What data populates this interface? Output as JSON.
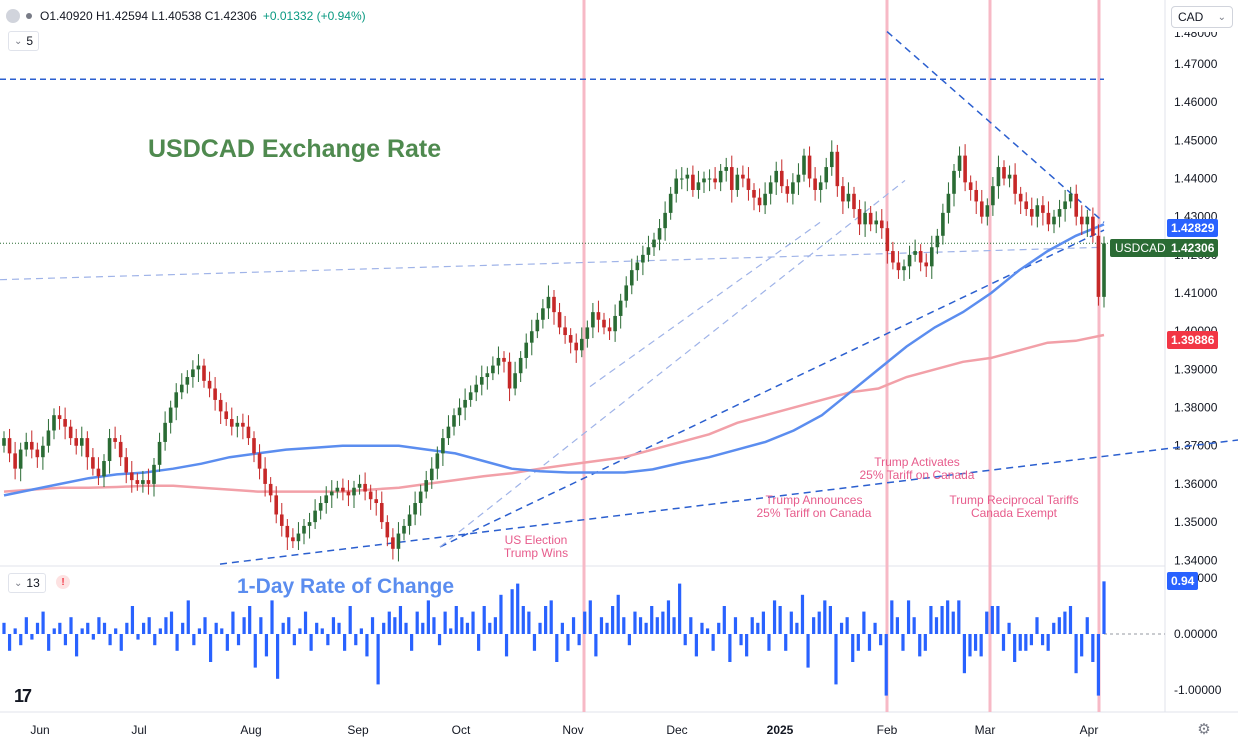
{
  "header": {
    "ohlc_text": "O1.40920 H1.42594 L1.40538 C1.42306",
    "change_text": "+0.01332 (+0.94%)",
    "main_legend_value": "5",
    "sub_legend_value": "13",
    "currency": "CAD"
  },
  "colors": {
    "up": "#2a6b34",
    "down": "#c62828",
    "ma_short": "#5b8def",
    "ma_long": "#f2a0a8",
    "event_line": "#f7b9c6",
    "trendline": "#2b5fcf",
    "roc_bar": "#2962ff",
    "annotation": "#e75c8c"
  },
  "chart_data": {
    "type": "candlestick",
    "title": "USDCAD Exchange Rate",
    "symbol": "USDCAD",
    "x_ticks": [
      "Jun",
      "Jul",
      "Aug",
      "Sep",
      "Oct",
      "Nov",
      "Dec",
      "2025",
      "Feb",
      "Mar",
      "Apr"
    ],
    "y_ticks": [
      "1.47000",
      "1.46000",
      "1.45000",
      "1.44000",
      "1.43000",
      "1.42000",
      "1.41000",
      "1.40000",
      "1.39000",
      "1.38000",
      "1.37000",
      "1.36000",
      "1.35000",
      "1.34000"
    ],
    "ylim": [
      1.3385,
      1.481
    ],
    "last_close": 1.42306,
    "price_labels": {
      "symbol_price": "1.42306",
      "ma_short": "1.42829",
      "ma_long": "1.39886",
      "roc_current": "0.94"
    },
    "price_series": [
      1.372,
      1.368,
      1.364,
      1.369,
      1.371,
      1.369,
      1.367,
      1.37,
      1.374,
      1.378,
      1.377,
      1.375,
      1.372,
      1.37,
      1.372,
      1.367,
      1.364,
      1.362,
      1.366,
      1.372,
      1.371,
      1.367,
      1.363,
      1.361,
      1.36,
      1.361,
      1.36,
      1.365,
      1.371,
      1.376,
      1.38,
      1.384,
      1.386,
      1.388,
      1.39,
      1.391,
      1.387,
      1.385,
      1.382,
      1.379,
      1.377,
      1.375,
      1.376,
      1.375,
      1.372,
      1.368,
      1.364,
      1.36,
      1.357,
      1.352,
      1.349,
      1.346,
      1.345,
      1.347,
      1.349,
      1.35,
      1.353,
      1.355,
      1.357,
      1.358,
      1.359,
      1.358,
      1.357,
      1.359,
      1.36,
      1.358,
      1.356,
      1.355,
      1.35,
      1.346,
      1.343,
      1.347,
      1.349,
      1.352,
      1.355,
      1.358,
      1.361,
      1.364,
      1.368,
      1.372,
      1.375,
      1.378,
      1.38,
      1.382,
      1.384,
      1.386,
      1.388,
      1.389,
      1.391,
      1.393,
      1.392,
      1.385,
      1.389,
      1.393,
      1.397,
      1.4,
      1.403,
      1.406,
      1.409,
      1.405,
      1.401,
      1.399,
      1.397,
      1.395,
      1.398,
      1.401,
      1.405,
      1.403,
      1.401,
      1.4,
      1.404,
      1.408,
      1.412,
      1.416,
      1.418,
      1.42,
      1.422,
      1.424,
      1.427,
      1.431,
      1.436,
      1.44,
      1.44,
      1.441,
      1.437,
      1.439,
      1.44,
      1.44,
      1.439,
      1.442,
      1.443,
      1.437,
      1.441,
      1.44,
      1.437,
      1.435,
      1.433,
      1.436,
      1.439,
      1.442,
      1.438,
      1.436,
      1.439,
      1.441,
      1.446,
      1.44,
      1.437,
      1.439,
      1.443,
      1.447,
      1.438,
      1.434,
      1.436,
      1.432,
      1.428,
      1.431,
      1.428,
      1.429,
      1.427,
      1.421,
      1.418,
      1.416,
      1.417,
      1.42,
      1.421,
      1.418,
      1.417,
      1.422,
      1.425,
      1.431,
      1.436,
      1.442,
      1.446,
      1.439,
      1.437,
      1.434,
      1.43,
      1.433,
      1.438,
      1.443,
      1.44,
      1.441,
      1.436,
      1.434,
      1.432,
      1.43,
      1.433,
      1.431,
      1.428,
      1.43,
      1.432,
      1.434,
      1.436,
      1.43,
      1.428,
      1.43,
      1.425,
      1.409,
      1.423
    ],
    "ma_short_series": [
      1.357,
      1.3585,
      1.36,
      1.3615,
      1.3625,
      1.363,
      1.364,
      1.3653,
      1.367,
      1.368,
      1.369,
      1.3695,
      1.37,
      1.37,
      1.37,
      1.369,
      1.368,
      1.366,
      1.364,
      1.3633,
      1.363,
      1.363,
      1.363,
      1.3638,
      1.3655,
      1.367,
      1.369,
      1.371,
      1.374,
      1.378,
      1.384,
      1.39,
      1.396,
      1.401,
      1.405,
      1.41,
      1.416,
      1.421,
      1.425,
      1.428
    ],
    "ma_long_series": [
      1.358,
      1.3585,
      1.359,
      1.359,
      1.3592,
      1.3595,
      1.3595,
      1.359,
      1.3585,
      1.358,
      1.358,
      1.358,
      1.358,
      1.3585,
      1.359,
      1.36,
      1.361,
      1.362,
      1.3628,
      1.364,
      1.365,
      1.366,
      1.367,
      1.369,
      1.371,
      1.373,
      1.376,
      1.378,
      1.38,
      1.382,
      1.384,
      1.385,
      1.388,
      1.39,
      1.392,
      1.393,
      1.395,
      1.397,
      1.3975,
      1.399
    ],
    "roc_series": [
      0.2,
      -0.3,
      0.1,
      -0.2,
      0.3,
      -0.1,
      0.2,
      0.4,
      -0.3,
      0.1,
      0.2,
      -0.2,
      0.3,
      -0.4,
      0.1,
      0.2,
      -0.1,
      0.3,
      0.2,
      -0.2,
      0.1,
      -0.3,
      0.2,
      0.5,
      -0.1,
      0.2,
      0.3,
      -0.2,
      0.1,
      0.3,
      0.4,
      -0.3,
      0.2,
      0.6,
      -0.2,
      0.1,
      0.3,
      -0.5,
      0.2,
      0.1,
      -0.3,
      0.4,
      -0.2,
      0.3,
      0.5,
      -0.6,
      0.3,
      -0.4,
      0.6,
      -0.8,
      0.2,
      0.3,
      -0.2,
      0.1,
      0.4,
      -0.3,
      0.2,
      0.1,
      -0.2,
      0.3,
      0.2,
      -0.3,
      0.5,
      -0.2,
      0.1,
      -0.4,
      0.3,
      -0.9,
      0.2,
      0.4,
      0.3,
      0.5,
      0.2,
      -0.3,
      0.4,
      0.2,
      0.6,
      0.3,
      -0.2,
      0.4,
      0.1,
      0.5,
      0.3,
      0.2,
      0.4,
      -0.3,
      0.5,
      0.2,
      0.3,
      0.7,
      -0.4,
      0.8,
      0.9,
      0.5,
      0.4,
      -0.3,
      0.2,
      0.5,
      0.6,
      -0.5,
      0.2,
      -0.3,
      0.3,
      -0.2,
      0.4,
      0.6,
      -0.4,
      0.3,
      0.2,
      0.5,
      0.7,
      0.3,
      -0.2,
      0.4,
      0.3,
      0.2,
      0.5,
      0.3,
      0.4,
      0.6,
      0.3,
      0.9,
      -0.2,
      0.3,
      -0.4,
      0.2,
      0.1,
      -0.3,
      0.2,
      0.5,
      -0.5,
      0.3,
      -0.2,
      -0.4,
      0.3,
      0.2,
      0.4,
      -0.3,
      0.6,
      0.5,
      -0.3,
      0.4,
      0.2,
      0.7,
      -0.6,
      0.3,
      0.4,
      0.6,
      0.5,
      -0.9,
      0.2,
      0.3,
      -0.5,
      -0.3,
      0.4,
      -0.3,
      0.2,
      -0.2,
      -1.1,
      0.6,
      0.3,
      -0.3,
      0.6,
      0.3,
      -0.4,
      -0.3,
      0.5,
      0.3,
      0.5,
      0.6,
      0.4,
      0.6,
      -0.7,
      -0.4,
      -0.3,
      -0.4,
      0.4,
      0.5,
      0.5,
      -0.3,
      0.2,
      -0.5,
      -0.3,
      -0.3,
      -0.2,
      0.3,
      -0.2,
      -0.3,
      0.2,
      0.3,
      0.4,
      0.5,
      -0.7,
      -0.4,
      0.3,
      -0.5,
      -1.1,
      0.94
    ],
    "sub_y_ticks": [
      "0.00000",
      "-1.00000"
    ],
    "sub_top_tick_partial": "1.00000",
    "horizontal_levels": [
      1.466
    ],
    "dotted_level": 1.42306,
    "annotations": [
      {
        "lines": [
          "US Election",
          "Trump Wins"
        ]
      },
      {
        "lines": [
          "Trump Announces",
          "25% Tariff on Canada"
        ]
      },
      {
        "lines": [
          "Trump Activates",
          "25% Tariff on Canada"
        ]
      },
      {
        "lines": [
          "Trump Reciprocal Tariffs",
          "Canada Exempt"
        ]
      }
    ],
    "sub_title": "1-Day Rate of Change",
    "grid": false
  }
}
